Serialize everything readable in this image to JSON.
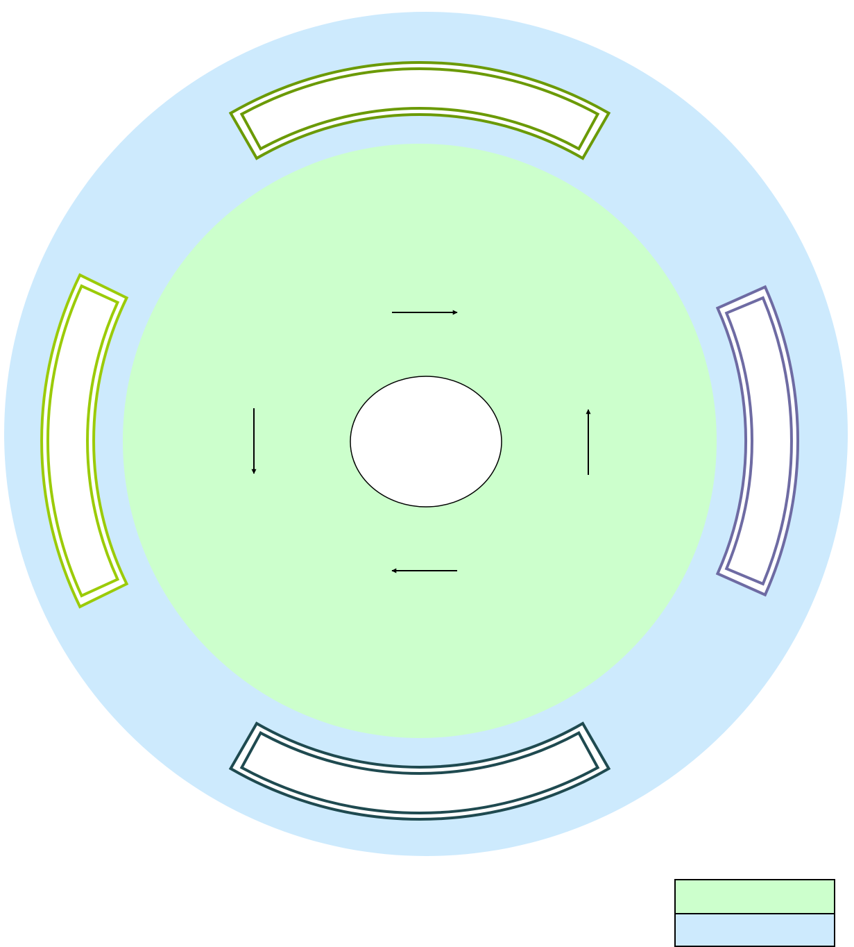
{
  "diagram": {
    "colors": {
      "outer_ring": "#cdeafd",
      "inner_disc": "#ccffcc",
      "center_hub": "#ffffff",
      "hub_outline": "#000000",
      "arrow": "#000000",
      "segment_fill": "#ffffff"
    },
    "segments": [
      {
        "position": "top",
        "outline_color": "#6b9a06"
      },
      {
        "position": "left",
        "outline_color": "#9bcb09"
      },
      {
        "position": "right",
        "outline_color": "#6e6ba3"
      },
      {
        "position": "bottom",
        "outline_color": "#1f4a50"
      }
    ],
    "arrows": [
      {
        "position": "top",
        "direction": "right"
      },
      {
        "position": "right",
        "direction": "up"
      },
      {
        "position": "bottom",
        "direction": "left"
      },
      {
        "position": "left",
        "direction": "down"
      }
    ]
  },
  "legend": {
    "entries": [
      {
        "swatch_color": "#ccffcc"
      },
      {
        "swatch_color": "#cdeafd"
      }
    ]
  }
}
